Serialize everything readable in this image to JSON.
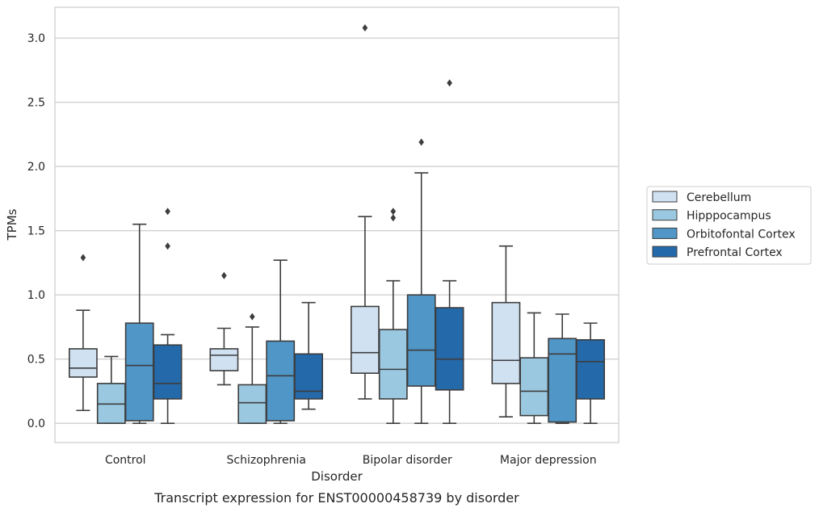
{
  "chart_data": {
    "type": "box",
    "caption": "Transcript expression for ENST00000458739 by disorder",
    "xlabel": "Disorder",
    "ylabel": "TPMs",
    "ylim": [
      -0.15,
      3.24
    ],
    "yticks": [
      "0.0",
      "0.5",
      "1.0",
      "1.5",
      "2.0",
      "2.5",
      "3.0"
    ],
    "categories": [
      "Control",
      "Schizophrenia",
      "Bipolar disorder",
      "Major depression"
    ],
    "grid": "horizontal",
    "legend_position": "right",
    "series": [
      {
        "name": "Cerebellum",
        "color": "#d0e1f2",
        "boxes": [
          {
            "q1": 0.36,
            "median": 0.43,
            "q3": 0.58,
            "whisker_low": 0.1,
            "whisker_high": 0.88,
            "outliers": [
              1.29
            ]
          },
          {
            "q1": 0.41,
            "median": 0.53,
            "q3": 0.58,
            "whisker_low": 0.3,
            "whisker_high": 0.74,
            "outliers": [
              1.15
            ]
          },
          {
            "q1": 0.39,
            "median": 0.55,
            "q3": 0.91,
            "whisker_low": 0.19,
            "whisker_high": 1.61,
            "outliers": [
              3.08
            ]
          },
          {
            "q1": 0.31,
            "median": 0.49,
            "q3": 0.94,
            "whisker_low": 0.05,
            "whisker_high": 1.38,
            "outliers": []
          }
        ]
      },
      {
        "name": "Hipppocampus",
        "color": "#9ac8e0",
        "boxes": [
          {
            "q1": 0.0,
            "median": 0.15,
            "q3": 0.31,
            "whisker_low": 0.0,
            "whisker_high": 0.52,
            "outliers": []
          },
          {
            "q1": 0.0,
            "median": 0.16,
            "q3": 0.3,
            "whisker_low": 0.0,
            "whisker_high": 0.75,
            "outliers": [
              0.83
            ]
          },
          {
            "q1": 0.19,
            "median": 0.42,
            "q3": 0.73,
            "whisker_low": 0.0,
            "whisker_high": 1.11,
            "outliers": [
              1.6,
              1.65
            ]
          },
          {
            "q1": 0.06,
            "median": 0.25,
            "q3": 0.51,
            "whisker_low": 0.0,
            "whisker_high": 0.86,
            "outliers": []
          }
        ]
      },
      {
        "name": "Orbitofontal Cortex",
        "color": "#5096c7",
        "boxes": [
          {
            "q1": 0.02,
            "median": 0.45,
            "q3": 0.78,
            "whisker_low": 0.0,
            "whisker_high": 1.55,
            "outliers": []
          },
          {
            "q1": 0.02,
            "median": 0.37,
            "q3": 0.64,
            "whisker_low": 0.0,
            "whisker_high": 1.27,
            "outliers": []
          },
          {
            "q1": 0.29,
            "median": 0.57,
            "q3": 1.0,
            "whisker_low": 0.0,
            "whisker_high": 1.95,
            "outliers": [
              2.19
            ]
          },
          {
            "q1": 0.01,
            "median": 0.54,
            "q3": 0.66,
            "whisker_low": 0.0,
            "whisker_high": 0.85,
            "outliers": []
          }
        ]
      },
      {
        "name": "Prefrontal Cortex",
        "color": "#2469aa",
        "boxes": [
          {
            "q1": 0.19,
            "median": 0.31,
            "q3": 0.61,
            "whisker_low": 0.0,
            "whisker_high": 0.69,
            "outliers": [
              1.38,
              1.65
            ]
          },
          {
            "q1": 0.19,
            "median": 0.25,
            "q3": 0.54,
            "whisker_low": 0.11,
            "whisker_high": 0.94,
            "outliers": []
          },
          {
            "q1": 0.26,
            "median": 0.5,
            "q3": 0.9,
            "whisker_low": 0.0,
            "whisker_high": 1.11,
            "outliers": [
              2.65
            ]
          },
          {
            "q1": 0.19,
            "median": 0.48,
            "q3": 0.65,
            "whisker_low": 0.0,
            "whisker_high": 0.78,
            "outliers": []
          }
        ]
      }
    ]
  }
}
